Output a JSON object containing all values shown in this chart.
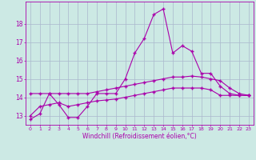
{
  "xlabel": "Windchill (Refroidissement éolien,°C)",
  "background_color": "#cce9e4",
  "grid_color": "#aab8cc",
  "line_color": "#aa00aa",
  "x": [
    0,
    1,
    2,
    3,
    4,
    5,
    6,
    7,
    8,
    9,
    10,
    11,
    12,
    13,
    14,
    15,
    16,
    17,
    18,
    19,
    20,
    21,
    22,
    23
  ],
  "line1": [
    12.8,
    13.1,
    14.2,
    13.6,
    12.9,
    12.9,
    13.5,
    14.2,
    14.2,
    14.2,
    15.0,
    16.4,
    17.2,
    18.5,
    18.8,
    16.4,
    16.8,
    16.5,
    15.3,
    15.3,
    14.6,
    14.2,
    14.1,
    14.1
  ],
  "line2": [
    14.2,
    14.2,
    14.2,
    14.2,
    14.2,
    14.2,
    14.2,
    14.3,
    14.4,
    14.5,
    14.6,
    14.7,
    14.8,
    14.9,
    15.0,
    15.1,
    15.1,
    15.15,
    15.1,
    15.0,
    14.9,
    14.5,
    14.2,
    14.1
  ],
  "line3": [
    13.0,
    13.5,
    13.6,
    13.7,
    13.5,
    13.6,
    13.7,
    13.8,
    13.85,
    13.9,
    14.0,
    14.1,
    14.2,
    14.3,
    14.4,
    14.5,
    14.5,
    14.5,
    14.5,
    14.4,
    14.1,
    14.1,
    14.1,
    14.1
  ],
  "ylim": [
    12.5,
    19.2
  ],
  "yticks": [
    13,
    14,
    15,
    16,
    17,
    18
  ],
  "xlim": [
    -0.5,
    23.5
  ]
}
